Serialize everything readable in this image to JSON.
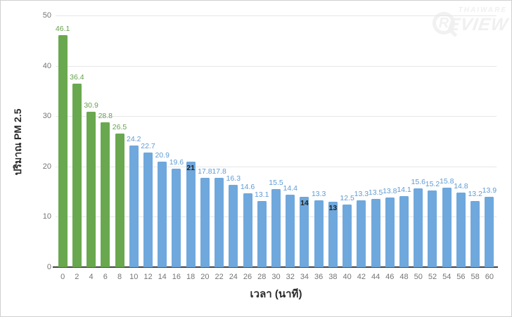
{
  "watermark": {
    "brand_top": "THAIWARE",
    "brand_main_initial": "R",
    "brand_main_rest": "EVIEW"
  },
  "chart_data": {
    "type": "bar",
    "title": "",
    "xlabel": "เวลา (นาที)",
    "ylabel": "ปริมาณ PM 2.5",
    "ylim": [
      0,
      50
    ],
    "yticks": [
      0,
      10,
      20,
      30,
      40,
      50
    ],
    "grid": true,
    "legend_position": "none",
    "categories": [
      "0",
      "2",
      "4",
      "6",
      "8",
      "10",
      "12",
      "14",
      "16",
      "18",
      "20",
      "22",
      "24",
      "26",
      "28",
      "30",
      "32",
      "34",
      "36",
      "38",
      "40",
      "42",
      "44",
      "46",
      "48",
      "50",
      "52",
      "54",
      "56",
      "58",
      "60"
    ],
    "values": [
      46.1,
      36.4,
      30.9,
      28.8,
      26.5,
      24.2,
      22.7,
      20.9,
      19.6,
      21,
      17.8,
      17.8,
      16.3,
      14.6,
      13.1,
      15.5,
      14.4,
      14,
      13.3,
      13,
      12.5,
      13.3,
      13.5,
      13.8,
      14.1,
      15.6,
      15.2,
      15.8,
      14.8,
      13.2,
      13.9
    ],
    "series": [
      {
        "name": "first-10-minutes-green",
        "color": "#6aa84f",
        "start_index": 0,
        "end_index": 4
      },
      {
        "name": "after-10-minutes-blue",
        "color": "#6fa8dc",
        "start_index": 5,
        "end_index": 30
      }
    ],
    "green_bar_count": 5,
    "inside_label_indices": [
      9,
      17,
      19
    ],
    "colors": {
      "bar_green": "#6aa84f",
      "bar_blue": "#6fa8dc",
      "label_green": "#64a14a",
      "label_blue": "#5f9bd3",
      "label_inside": "#222222",
      "axis_line": "#424242",
      "gridline": "#e6e6e6",
      "tick_text": "#757575",
      "title_text": "#2b2b2b",
      "watermark": "#f0f0f0"
    }
  }
}
